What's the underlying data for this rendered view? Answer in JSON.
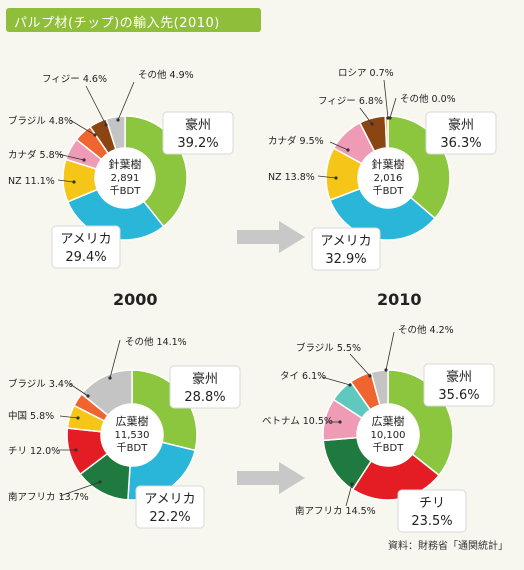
{
  "header": {
    "title": "パルプ材(チップ)の輸入先(2010)"
  },
  "years": {
    "left": "2000",
    "right": "2010"
  },
  "source": "資料：財務省「通関統計」",
  "colors": {
    "australia": "#8cc63f",
    "usa": "#29b6d8",
    "nz": "#f5c518",
    "canada": "#ef9bb5",
    "brazil": "#f0652f",
    "fiji": "#8b4513",
    "other": "#c4c4c4",
    "russia": "#e8a13a",
    "chile": "#e31d23",
    "south_africa": "#1f7a3f",
    "vietnam": "#ef9bb5",
    "thailand": "#5fc9c0",
    "china": "#f5c518",
    "banner": "#8fbf3a"
  },
  "chart_data": [
    {
      "type": "pie",
      "center_lines": [
        "針葉樹",
        "2,891",
        "千BDT"
      ],
      "slices": [
        {
          "label": "豪州",
          "value": 39.2,
          "text": "39.2%",
          "color": "australia"
        },
        {
          "label": "アメリカ",
          "value": 29.4,
          "text": "29.4%",
          "color": "usa"
        },
        {
          "label": "NZ",
          "value": 11.1,
          "text": "11.1%",
          "color": "nz"
        },
        {
          "label": "カナダ",
          "value": 5.8,
          "text": "5.8%",
          "color": "canada"
        },
        {
          "label": "ブラジル",
          "value": 4.8,
          "text": "4.8%",
          "color": "brazil"
        },
        {
          "label": "フィジー",
          "value": 4.6,
          "text": "4.6%",
          "color": "fiji"
        },
        {
          "label": "その他",
          "value": 4.9,
          "text": "4.9%",
          "color": "other"
        }
      ]
    },
    {
      "type": "pie",
      "center_lines": [
        "針葉樹",
        "2,016",
        "千BDT"
      ],
      "slices": [
        {
          "label": "豪州",
          "value": 36.3,
          "text": "36.3%",
          "color": "australia"
        },
        {
          "label": "アメリカ",
          "value": 32.9,
          "text": "32.9%",
          "color": "usa"
        },
        {
          "label": "NZ",
          "value": 13.8,
          "text": "13.8%",
          "color": "nz"
        },
        {
          "label": "カナダ",
          "value": 9.5,
          "text": "9.5%",
          "color": "canada"
        },
        {
          "label": "フィジー",
          "value": 6.8,
          "text": "6.8%",
          "color": "fiji"
        },
        {
          "label": "ロシア",
          "value": 0.7,
          "text": "0.7%",
          "color": "russia"
        },
        {
          "label": "その他",
          "value": 0.0,
          "text": "0.0%",
          "color": "other"
        }
      ]
    },
    {
      "type": "pie",
      "center_lines": [
        "広葉樹",
        "11,530",
        "千BDT"
      ],
      "slices": [
        {
          "label": "豪州",
          "value": 28.8,
          "text": "28.8%",
          "color": "australia"
        },
        {
          "label": "アメリカ",
          "value": 22.2,
          "text": "22.2%",
          "color": "usa"
        },
        {
          "label": "南アフリカ",
          "value": 13.7,
          "text": "13.7%",
          "color": "south_africa"
        },
        {
          "label": "チリ",
          "value": 12.0,
          "text": "12.0%",
          "color": "chile"
        },
        {
          "label": "中国",
          "value": 5.8,
          "text": "5.8%",
          "color": "china"
        },
        {
          "label": "ブラジル",
          "value": 3.4,
          "text": "3.4%",
          "color": "brazil"
        },
        {
          "label": "その他",
          "value": 14.1,
          "text": "14.1%",
          "color": "other"
        }
      ]
    },
    {
      "type": "pie",
      "center_lines": [
        "広葉樹",
        "10,100",
        "千BDT"
      ],
      "slices": [
        {
          "label": "豪州",
          "value": 35.6,
          "text": "35.6%",
          "color": "australia"
        },
        {
          "label": "チリ",
          "value": 23.5,
          "text": "23.5%",
          "color": "chile"
        },
        {
          "label": "南アフリカ",
          "value": 14.5,
          "text": "14.5%",
          "color": "south_africa"
        },
        {
          "label": "ベトナム",
          "value": 10.5,
          "text": "10.5%",
          "color": "vietnam"
        },
        {
          "label": "タイ",
          "value": 6.1,
          "text": "6.1%",
          "color": "thailand"
        },
        {
          "label": "ブラジル",
          "value": 5.5,
          "text": "5.5%",
          "color": "brazil"
        },
        {
          "label": "その他",
          "value": 4.2,
          "text": "4.2%",
          "color": "other"
        }
      ]
    }
  ]
}
